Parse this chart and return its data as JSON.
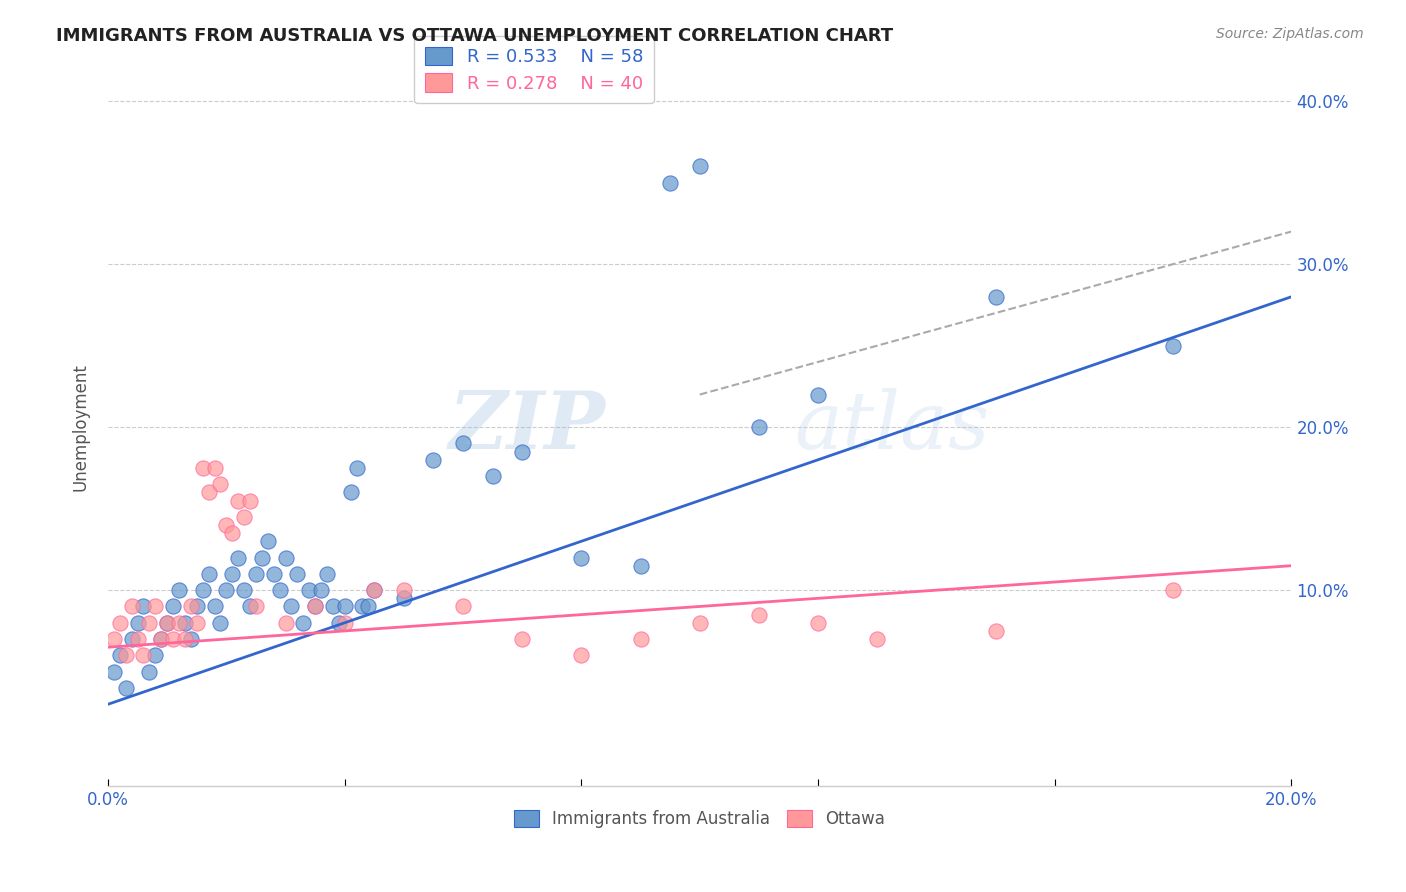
{
  "title": "IMMIGRANTS FROM AUSTRALIA VS OTTAWA UNEMPLOYMENT CORRELATION CHART",
  "source": "Source: ZipAtlas.com",
  "ylabel": "Unemployment",
  "xlim": [
    0.0,
    0.2
  ],
  "ylim": [
    -0.02,
    0.42
  ],
  "xtick_positions": [
    0.0,
    0.04,
    0.08,
    0.12,
    0.16,
    0.2
  ],
  "xtick_labels": [
    "0.0%",
    "",
    "",
    "",
    "",
    "20.0%"
  ],
  "ytick_labels_right": [
    "40.0%",
    "30.0%",
    "20.0%",
    "10.0%"
  ],
  "ytick_vals_right": [
    0.4,
    0.3,
    0.2,
    0.1
  ],
  "blue_color": "#6699CC",
  "pink_color": "#FF9999",
  "blue_line_color": "#3366CC",
  "pink_line_color": "#FF6699",
  "dashed_line_color": "#AAAAAA",
  "watermark_zip": "ZIP",
  "watermark_atlas": "atlas",
  "blue_scatter_x": [
    0.001,
    0.002,
    0.003,
    0.004,
    0.005,
    0.006,
    0.007,
    0.008,
    0.009,
    0.01,
    0.011,
    0.012,
    0.013,
    0.014,
    0.015,
    0.016,
    0.017,
    0.018,
    0.019,
    0.02,
    0.021,
    0.022,
    0.023,
    0.024,
    0.025,
    0.026,
    0.027,
    0.028,
    0.029,
    0.03,
    0.031,
    0.032,
    0.033,
    0.034,
    0.035,
    0.036,
    0.037,
    0.038,
    0.039,
    0.04,
    0.041,
    0.042,
    0.043,
    0.044,
    0.045,
    0.05,
    0.055,
    0.06,
    0.065,
    0.07,
    0.08,
    0.09,
    0.095,
    0.1,
    0.11,
    0.12,
    0.15,
    0.18
  ],
  "blue_scatter_y": [
    0.05,
    0.06,
    0.04,
    0.07,
    0.08,
    0.09,
    0.05,
    0.06,
    0.07,
    0.08,
    0.09,
    0.1,
    0.08,
    0.07,
    0.09,
    0.1,
    0.11,
    0.09,
    0.08,
    0.1,
    0.11,
    0.12,
    0.1,
    0.09,
    0.11,
    0.12,
    0.13,
    0.11,
    0.1,
    0.12,
    0.09,
    0.11,
    0.08,
    0.1,
    0.09,
    0.1,
    0.11,
    0.09,
    0.08,
    0.09,
    0.16,
    0.175,
    0.09,
    0.09,
    0.1,
    0.095,
    0.18,
    0.19,
    0.17,
    0.185,
    0.12,
    0.115,
    0.35,
    0.36,
    0.2,
    0.22,
    0.28,
    0.25
  ],
  "pink_scatter_x": [
    0.001,
    0.002,
    0.003,
    0.004,
    0.005,
    0.006,
    0.007,
    0.008,
    0.009,
    0.01,
    0.011,
    0.012,
    0.013,
    0.014,
    0.015,
    0.016,
    0.017,
    0.018,
    0.019,
    0.02,
    0.021,
    0.022,
    0.023,
    0.024,
    0.025,
    0.03,
    0.035,
    0.04,
    0.045,
    0.05,
    0.06,
    0.07,
    0.08,
    0.09,
    0.1,
    0.11,
    0.12,
    0.13,
    0.15,
    0.18
  ],
  "pink_scatter_y": [
    0.07,
    0.08,
    0.06,
    0.09,
    0.07,
    0.06,
    0.08,
    0.09,
    0.07,
    0.08,
    0.07,
    0.08,
    0.07,
    0.09,
    0.08,
    0.175,
    0.16,
    0.175,
    0.165,
    0.14,
    0.135,
    0.155,
    0.145,
    0.155,
    0.09,
    0.08,
    0.09,
    0.08,
    0.1,
    0.1,
    0.09,
    0.07,
    0.06,
    0.07,
    0.08,
    0.085,
    0.08,
    0.07,
    0.075,
    0.1
  ],
  "blue_line_x": [
    0.0,
    0.2
  ],
  "blue_line_y": [
    0.03,
    0.28
  ],
  "pink_line_x": [
    0.0,
    0.2
  ],
  "pink_line_y": [
    0.065,
    0.115
  ],
  "dashed_line_x": [
    0.1,
    0.2
  ],
  "dashed_line_y": [
    0.22,
    0.32
  ]
}
